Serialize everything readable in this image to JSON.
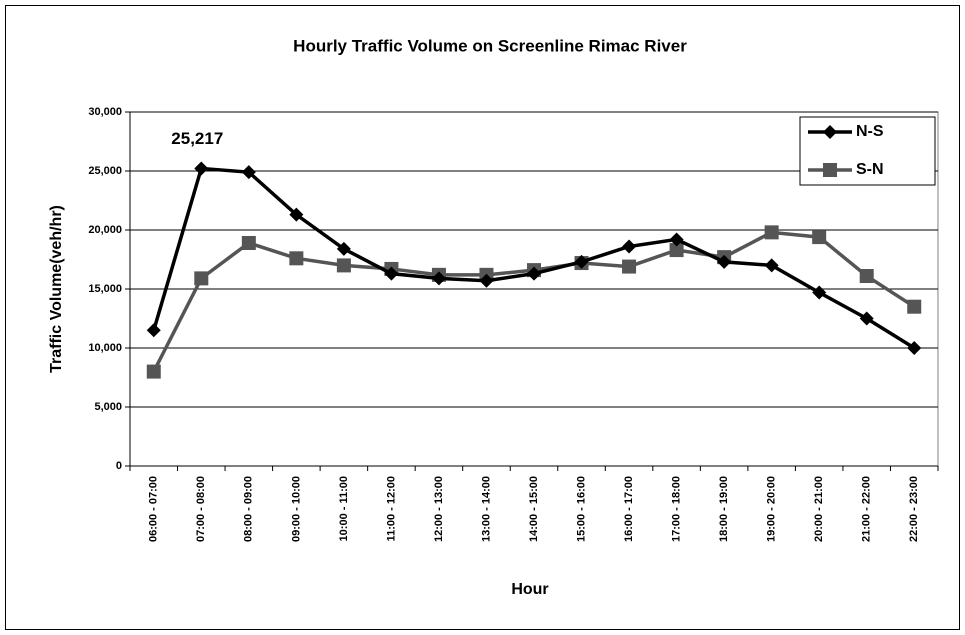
{
  "chart_data": {
    "type": "line",
    "title": "Hourly Traffic Volume on Screenline Rimac River",
    "x_label": "Hour",
    "y_label": "Traffic Volume(veh/hr)",
    "categories": [
      "06:00 - 07:00",
      "07:00 - 08:00",
      "08:00 - 09:00",
      "09:00 - 10:00",
      "10:00 - 11:00",
      "11:00 - 12:00",
      "12:00 - 13:00",
      "13:00 - 14:00",
      "14:00 - 15:00",
      "15:00 - 16:00",
      "16:00 - 17:00",
      "17:00 - 18:00",
      "18:00 - 19:00",
      "19:00 - 20:00",
      "20:00 - 21:00",
      "21:00 - 22:00",
      "22:00 - 23:00"
    ],
    "series": [
      {
        "name": "N-S",
        "color": "#000000",
        "marker": "diamond",
        "values": [
          11500,
          25217,
          24900,
          21300,
          18400,
          16300,
          15900,
          15700,
          16300,
          17300,
          18600,
          19200,
          17300,
          17000,
          14700,
          12500,
          10000
        ],
        "value_labels": [
          null,
          "25,217",
          null,
          null,
          null,
          null,
          null,
          null,
          null,
          null,
          null,
          null,
          null,
          null,
          null,
          null,
          null
        ]
      },
      {
        "name": "S-N",
        "color": "#555555",
        "marker": "square",
        "values": [
          8000,
          15900,
          18900,
          17600,
          17000,
          16700,
          16200,
          16200,
          16600,
          17200,
          16900,
          18300,
          17700,
          19800,
          19400,
          16100,
          13500
        ]
      }
    ],
    "ylim": [
      0,
      30000
    ],
    "yticks": [
      0,
      {
        "value": 5000,
        "label": "5,000"
      },
      {
        "value": 10000,
        "label": "10,000"
      },
      {
        "value": 15000,
        "label": "15,000"
      },
      {
        "value": 20000,
        "label": "20,000"
      },
      {
        "value": 25000,
        "label": "25,000"
      },
      {
        "value": 30000,
        "label": "30,000"
      }
    ],
    "grid": true,
    "legend": "upper right"
  }
}
